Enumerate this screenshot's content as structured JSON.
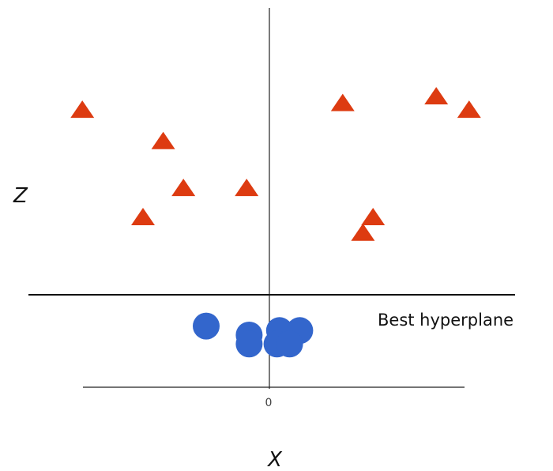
{
  "chart_data": {
    "type": "scatter",
    "xlabel": "X",
    "ylabel": "Z",
    "x_tick_labels": [
      "0"
    ],
    "annotation": "Best hyperplane",
    "grid": false,
    "colors": {
      "triangle": "#dd3b11",
      "circle": "#3366cc",
      "axis": "#222222",
      "hyperplane": "#111111"
    },
    "series": [
      {
        "marker": "triangle",
        "points": [
          {
            "x": -0.74,
            "y": 0.83
          },
          {
            "x": -0.42,
            "y": 0.69
          },
          {
            "x": -0.34,
            "y": 0.48
          },
          {
            "x": -0.5,
            "y": 0.35
          },
          {
            "x": -0.09,
            "y": 0.48
          },
          {
            "x": 0.29,
            "y": 0.86
          },
          {
            "x": 0.66,
            "y": 0.89
          },
          {
            "x": 0.79,
            "y": 0.83
          },
          {
            "x": 0.41,
            "y": 0.35
          },
          {
            "x": 0.37,
            "y": 0.28
          }
        ]
      },
      {
        "marker": "circle",
        "points": [
          {
            "x": -0.25,
            "y": -0.14
          },
          {
            "x": -0.08,
            "y": -0.18
          },
          {
            "x": -0.08,
            "y": -0.22
          },
          {
            "x": 0.04,
            "y": -0.16
          },
          {
            "x": 0.12,
            "y": -0.16
          },
          {
            "x": 0.03,
            "y": -0.22
          },
          {
            "x": 0.08,
            "y": -0.22
          }
        ]
      }
    ],
    "hyperplane_y": 0.0,
    "xlim": [
      -1.0,
      1.0
    ],
    "ylim": [
      -0.45,
      1.3
    ]
  }
}
